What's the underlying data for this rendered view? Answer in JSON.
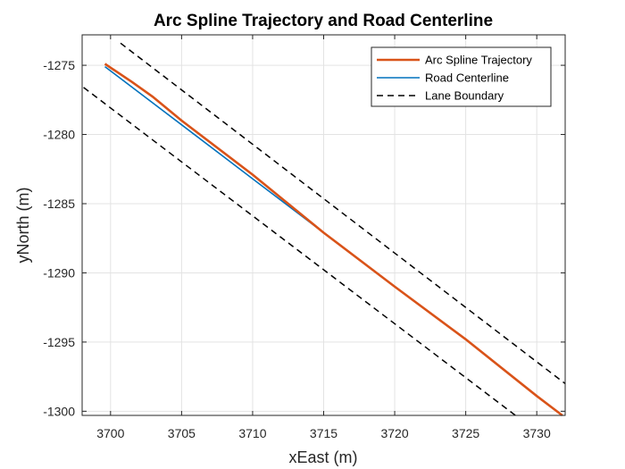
{
  "chart_data": {
    "type": "line",
    "title": "Arc Spline Trajectory and Road Centerline",
    "xlabel": "xEast (m)",
    "ylabel": "yNorth (m)",
    "xlim": [
      3698,
      3732
    ],
    "ylim": [
      -1300.3,
      -1272.8
    ],
    "xticks": [
      3700,
      3705,
      3710,
      3715,
      3720,
      3725,
      3730
    ],
    "yticks": [
      -1275,
      -1280,
      -1285,
      -1290,
      -1295,
      -1300
    ],
    "grid": true,
    "legend_position": "top-right",
    "series": [
      {
        "name": "Arc Spline Trajectory",
        "color": "#D95319",
        "style": "solid",
        "x": [
          3699.6,
          3701.5,
          3703,
          3705,
          3710,
          3715,
          3720,
          3725,
          3730,
          3731.8
        ],
        "y": [
          -1274.9,
          -1276.2,
          -1277.3,
          -1279.0,
          -1282.9,
          -1287.1,
          -1291.0,
          -1294.8,
          -1298.9,
          -1300.3
        ]
      },
      {
        "name": "Road Centerline",
        "color": "#0072BD",
        "style": "solid",
        "x": [
          3699.6,
          3705,
          3710,
          3715,
          3720,
          3725,
          3730,
          3731.8
        ],
        "y": [
          -1275.1,
          -1279.3,
          -1283.2,
          -1287.1,
          -1291.0,
          -1294.8,
          -1298.9,
          -1300.3
        ]
      },
      {
        "name": "Lane Boundary",
        "color": "#000000",
        "style": "dashed",
        "x": [
          3698.1,
          3728.5
        ],
        "y": [
          -1276.6,
          -1300.3
        ]
      },
      {
        "name": "Lane Boundary",
        "color": "#000000",
        "style": "dashed",
        "x": [
          3700.7,
          3732
        ],
        "y": [
          -1273.4,
          -1298.0
        ]
      }
    ],
    "legend": [
      "Arc Spline Trajectory",
      "Road Centerline",
      "Lane Boundary"
    ]
  }
}
